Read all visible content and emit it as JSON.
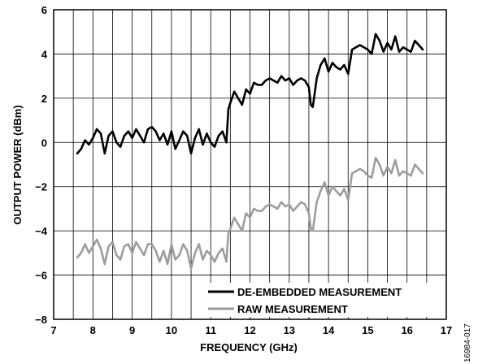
{
  "chart_data": {
    "type": "line",
    "title": "",
    "xlabel": "FREQUENCY (GHz)",
    "ylabel": "OUTPUT POWER (dBm)",
    "xlim": [
      7,
      17
    ],
    "ylim": [
      -8,
      6
    ],
    "x_ticks": [
      7,
      8,
      9,
      10,
      11,
      12,
      13,
      14,
      15,
      16,
      17
    ],
    "y_ticks": [
      6,
      4,
      2,
      0,
      -2,
      -4,
      -6,
      -8
    ],
    "x_tick_labels": [
      "7",
      "8",
      "9",
      "10",
      "11",
      "12",
      "13",
      "14",
      "15",
      "16",
      "17"
    ],
    "y_tick_labels": [
      "6",
      "4",
      "2",
      "0",
      "−2",
      "−4",
      "−6",
      "−8"
    ],
    "grid": {
      "vertical_step": 0.5,
      "horizontal_step": 2
    },
    "legend_position": "bottom-right",
    "figure_id": "16984-017",
    "series": [
      {
        "name": "DE-EMBEDDED MEASUREMENT",
        "color": "#000000",
        "x": [
          7.6,
          7.7,
          7.8,
          7.9,
          8.0,
          8.1,
          8.2,
          8.3,
          8.4,
          8.5,
          8.6,
          8.7,
          8.8,
          8.9,
          9.0,
          9.1,
          9.2,
          9.3,
          9.4,
          9.5,
          9.6,
          9.7,
          9.8,
          9.9,
          10.0,
          10.1,
          10.2,
          10.3,
          10.4,
          10.5,
          10.6,
          10.7,
          10.8,
          10.9,
          11.0,
          11.1,
          11.2,
          11.3,
          11.4,
          11.45,
          11.5,
          11.6,
          11.7,
          11.8,
          11.9,
          12.0,
          12.1,
          12.2,
          12.3,
          12.4,
          12.5,
          12.6,
          12.7,
          12.8,
          12.9,
          13.0,
          13.1,
          13.2,
          13.3,
          13.4,
          13.5,
          13.55,
          13.6,
          13.7,
          13.8,
          13.9,
          14.0,
          14.1,
          14.2,
          14.3,
          14.4,
          14.5,
          14.6,
          14.7,
          14.8,
          14.9,
          15.0,
          15.1,
          15.2,
          15.3,
          15.4,
          15.5,
          15.6,
          15.7,
          15.8,
          15.9,
          16.0,
          16.1,
          16.2,
          16.3,
          16.4
        ],
        "y": [
          -0.5,
          -0.3,
          0.1,
          -0.1,
          0.2,
          0.6,
          0.4,
          -0.5,
          0.3,
          0.5,
          0.0,
          -0.2,
          0.3,
          0.5,
          0.2,
          0.6,
          0.3,
          0.0,
          0.6,
          0.7,
          0.5,
          0.1,
          0.4,
          -0.1,
          0.5,
          -0.3,
          0.1,
          0.5,
          0.3,
          -0.5,
          0.2,
          0.6,
          -0.1,
          0.4,
          0.0,
          -0.2,
          0.3,
          0.5,
          0.0,
          1.5,
          1.8,
          2.3,
          2.0,
          1.7,
          2.4,
          2.2,
          2.7,
          2.6,
          2.6,
          2.8,
          2.9,
          2.8,
          2.7,
          3.0,
          2.8,
          2.9,
          2.6,
          2.8,
          2.9,
          2.8,
          2.5,
          1.7,
          1.6,
          2.9,
          3.5,
          3.8,
          3.2,
          3.6,
          3.4,
          3.3,
          3.5,
          3.1,
          4.2,
          4.3,
          4.4,
          4.3,
          4.2,
          4.0,
          4.9,
          4.6,
          4.1,
          4.5,
          4.2,
          4.8,
          4.1,
          4.3,
          4.2,
          4.1,
          4.6,
          4.4,
          4.2
        ]
      },
      {
        "name": "RAW MEASUREMENT",
        "color": "#9d9d9d",
        "x": [
          7.6,
          7.7,
          7.8,
          7.9,
          8.0,
          8.1,
          8.2,
          8.3,
          8.4,
          8.5,
          8.6,
          8.7,
          8.8,
          8.9,
          9.0,
          9.1,
          9.2,
          9.3,
          9.4,
          9.5,
          9.6,
          9.7,
          9.8,
          9.9,
          10.0,
          10.1,
          10.2,
          10.3,
          10.4,
          10.5,
          10.6,
          10.7,
          10.8,
          10.9,
          11.0,
          11.1,
          11.2,
          11.3,
          11.4,
          11.45,
          11.5,
          11.6,
          11.7,
          11.8,
          11.9,
          12.0,
          12.1,
          12.2,
          12.3,
          12.4,
          12.5,
          12.6,
          12.7,
          12.8,
          12.9,
          13.0,
          13.1,
          13.2,
          13.3,
          13.4,
          13.5,
          13.55,
          13.6,
          13.7,
          13.8,
          13.9,
          14.0,
          14.1,
          14.2,
          14.3,
          14.4,
          14.5,
          14.6,
          14.7,
          14.8,
          14.9,
          15.0,
          15.1,
          15.2,
          15.3,
          15.4,
          15.5,
          15.6,
          15.7,
          15.8,
          15.9,
          16.0,
          16.1,
          16.2,
          16.3,
          16.4
        ],
        "y": [
          -5.2,
          -5.0,
          -4.6,
          -5.0,
          -4.7,
          -4.4,
          -4.8,
          -5.5,
          -4.7,
          -4.5,
          -5.1,
          -5.3,
          -4.7,
          -4.6,
          -5.0,
          -4.5,
          -4.8,
          -5.1,
          -4.6,
          -4.6,
          -4.9,
          -5.4,
          -4.9,
          -5.5,
          -4.6,
          -5.3,
          -5.1,
          -4.6,
          -4.9,
          -5.7,
          -5.0,
          -4.6,
          -5.3,
          -4.9,
          -5.1,
          -5.4,
          -5.0,
          -4.8,
          -5.4,
          -4.1,
          -3.9,
          -3.4,
          -3.7,
          -4.0,
          -3.2,
          -3.4,
          -3.0,
          -3.1,
          -3.1,
          -2.9,
          -2.8,
          -2.9,
          -3.0,
          -2.7,
          -2.9,
          -2.8,
          -3.1,
          -2.9,
          -2.7,
          -2.8,
          -3.2,
          -3.9,
          -4.0,
          -2.7,
          -2.2,
          -1.8,
          -2.4,
          -2.0,
          -2.2,
          -2.4,
          -2.1,
          -2.6,
          -1.4,
          -1.3,
          -1.2,
          -1.3,
          -1.5,
          -1.6,
          -0.7,
          -1.0,
          -1.5,
          -1.1,
          -1.4,
          -0.8,
          -1.5,
          -1.3,
          -1.4,
          -1.5,
          -1.0,
          -1.2,
          -1.4
        ]
      }
    ]
  }
}
